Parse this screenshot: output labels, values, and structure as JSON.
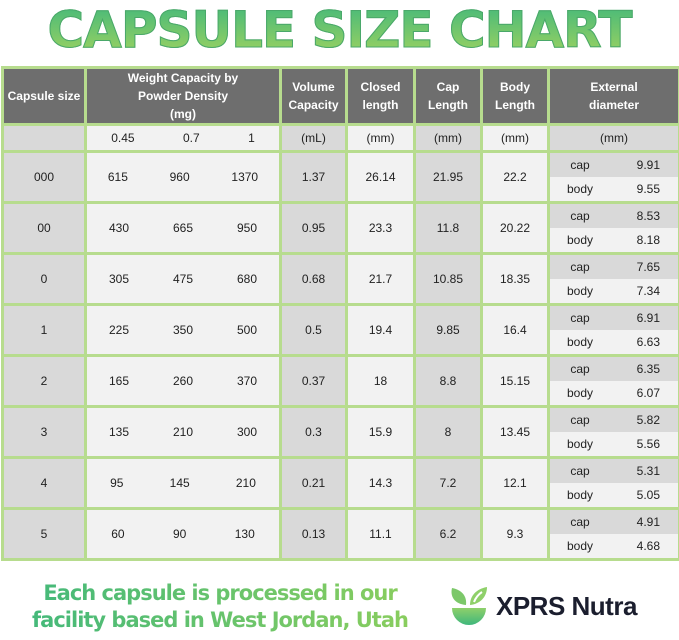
{
  "title": "CAPSULE SIZE CHART",
  "headers": {
    "capsule_size": "Capsule size",
    "weight": "Weight Capacity by Powder Density (mg)",
    "volume": "Volume Capacity",
    "closed": "Closed length",
    "cap": "Cap Length",
    "body": "Body Length",
    "external": "External diameter"
  },
  "units": {
    "densities": [
      "0.45",
      "0.7",
      "1"
    ],
    "volume": "(mL)",
    "closed": "(mm)",
    "cap": "(mm)",
    "body": "(mm)",
    "external": "(mm)"
  },
  "sub_labels": {
    "cap": "cap",
    "body": "body"
  },
  "rows": [
    {
      "size": "000",
      "weights": [
        "615",
        "960",
        "1370"
      ],
      "volume": "1.37",
      "closed": "26.14",
      "cap": "21.95",
      "body": "22.2",
      "ext_cap": "9.91",
      "ext_body": "9.55"
    },
    {
      "size": "00",
      "weights": [
        "430",
        "665",
        "950"
      ],
      "volume": "0.95",
      "closed": "23.3",
      "cap": "11.8",
      "body": "20.22",
      "ext_cap": "8.53",
      "ext_body": "8.18"
    },
    {
      "size": "0",
      "weights": [
        "305",
        "475",
        "680"
      ],
      "volume": "0.68",
      "closed": "21.7",
      "cap": "10.85",
      "body": "18.35",
      "ext_cap": "7.65",
      "ext_body": "7.34"
    },
    {
      "size": "1",
      "weights": [
        "225",
        "350",
        "500"
      ],
      "volume": "0.5",
      "closed": "19.4",
      "cap": "9.85",
      "body": "16.4",
      "ext_cap": "6.91",
      "ext_body": "6.63"
    },
    {
      "size": "2",
      "weights": [
        "165",
        "260",
        "370"
      ],
      "volume": "0.37",
      "closed": "18",
      "cap": "8.8",
      "body": "15.15",
      "ext_cap": "6.35",
      "ext_body": "6.07"
    },
    {
      "size": "3",
      "weights": [
        "135",
        "210",
        "300"
      ],
      "volume": "0.3",
      "closed": "15.9",
      "cap": "8",
      "body": "13.45",
      "ext_cap": "5.82",
      "ext_body": "5.56"
    },
    {
      "size": "4",
      "weights": [
        "95",
        "145",
        "210"
      ],
      "volume": "0.21",
      "closed": "14.3",
      "cap": "7.2",
      "body": "12.1",
      "ext_cap": "5.31",
      "ext_body": "5.05"
    },
    {
      "size": "5",
      "weights": [
        "60",
        "90",
        "130"
      ],
      "volume": "0.13",
      "closed": "11.1",
      "cap": "6.2",
      "body": "9.3",
      "ext_cap": "4.91",
      "ext_body": "4.68"
    }
  ],
  "footer": {
    "line1": "Each capsule is processed in our",
    "line2": "facility based in West Jordan, Utah"
  },
  "logo": {
    "text": "XPRS Nutra",
    "icon": "leaf-bowl-icon"
  },
  "colors": {
    "header_bg": "#6e6e6e",
    "border": "#b7dc8e",
    "accent_green": "#3fb77c"
  }
}
